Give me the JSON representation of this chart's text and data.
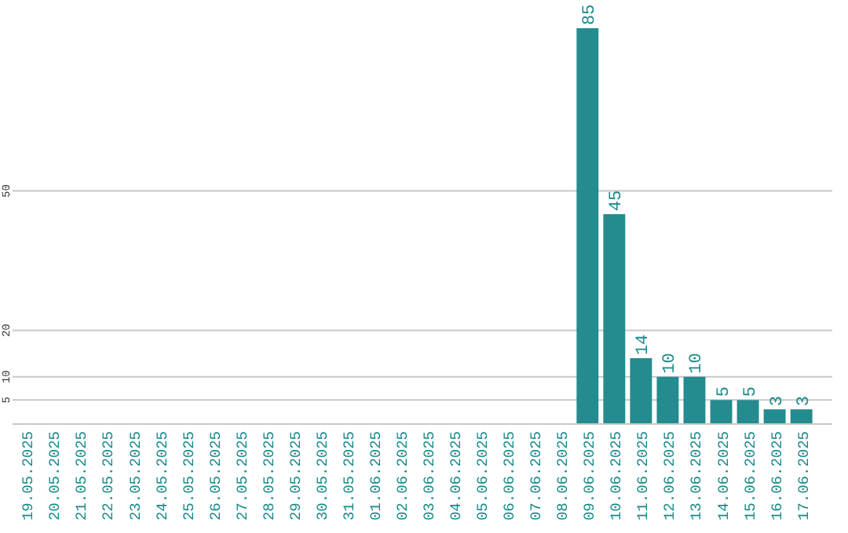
{
  "chart_data": {
    "type": "bar",
    "categories": [
      "19.05.2025",
      "20.05.2025",
      "21.05.2025",
      "22.05.2025",
      "23.05.2025",
      "24.05.2025",
      "25.05.2025",
      "26.05.2025",
      "27.05.2025",
      "28.05.2025",
      "29.05.2025",
      "30.05.2025",
      "31.05.2025",
      "01.06.2025",
      "02.06.2025",
      "03.06.2025",
      "04.06.2025",
      "05.06.2025",
      "06.06.2025",
      "07.06.2025",
      "08.06.2025",
      "09.06.2025",
      "10.06.2025",
      "11.06.2025",
      "12.06.2025",
      "13.06.2025",
      "14.06.2025",
      "15.06.2025",
      "16.06.2025",
      "17.06.2025"
    ],
    "values": [
      0,
      0,
      0,
      0,
      0,
      0,
      0,
      0,
      0,
      0,
      0,
      0,
      0,
      0,
      0,
      0,
      0,
      0,
      0,
      0,
      0,
      85,
      45,
      14,
      10,
      10,
      5,
      5,
      3,
      3
    ],
    "value_labels": [
      null,
      null,
      null,
      null,
      null,
      null,
      null,
      null,
      null,
      null,
      null,
      null,
      null,
      null,
      null,
      null,
      null,
      null,
      null,
      null,
      null,
      "85",
      "45",
      "14",
      "10",
      "10",
      "5",
      "5",
      "3",
      "3"
    ],
    "color": "#248b8f",
    "ylim": [
      0,
      85
    ],
    "yticks": [
      5,
      10,
      20,
      50
    ],
    "grid": "y"
  }
}
